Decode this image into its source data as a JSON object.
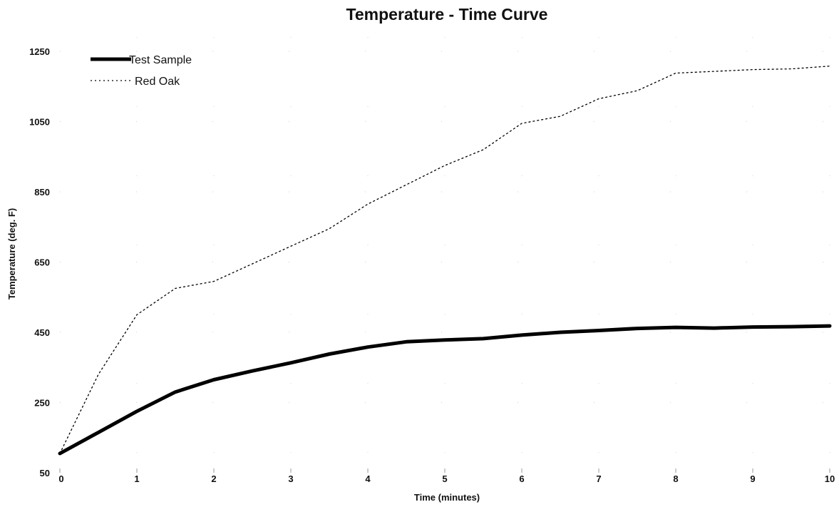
{
  "chart_data": {
    "type": "line",
    "title": "Temperature - Time Curve",
    "xlabel": "Time (minutes)",
    "ylabel": "Temperature (deg. F)",
    "xlim": [
      0,
      10
    ],
    "ylim": [
      50,
      1250
    ],
    "xticks": [
      0,
      1,
      2,
      3,
      4,
      5,
      6,
      7,
      8,
      9,
      10
    ],
    "yticks": [
      50,
      250,
      450,
      650,
      850,
      1050,
      1250
    ],
    "grid": false,
    "legend": "top-left",
    "series": [
      {
        "name": "Test Sample",
        "style": "solid",
        "color": "#000000",
        "x": [
          0,
          0.5,
          1,
          1.5,
          2,
          2.5,
          3,
          3.5,
          4,
          4.5,
          5,
          5.5,
          6,
          6.5,
          7,
          7.5,
          8,
          8.5,
          9,
          9.5,
          10
        ],
        "y": [
          105,
          165,
          225,
          280,
          315,
          340,
          363,
          388,
          408,
          423,
          428,
          432,
          442,
          450,
          455,
          461,
          464,
          462,
          465,
          466,
          468
        ]
      },
      {
        "name": "Red Oak",
        "style": "dotted",
        "color": "#000000",
        "x": [
          0,
          0.5,
          1,
          1.5,
          2,
          2.5,
          3,
          3.5,
          4,
          4.5,
          5,
          5.5,
          6,
          6.5,
          7,
          7.5,
          8,
          8.5,
          9,
          9.5,
          10
        ],
        "y": [
          105,
          330,
          500,
          575,
          595,
          645,
          695,
          745,
          815,
          870,
          925,
          970,
          1045,
          1065,
          1115,
          1138,
          1188,
          1193,
          1198,
          1200,
          1208
        ]
      }
    ]
  }
}
